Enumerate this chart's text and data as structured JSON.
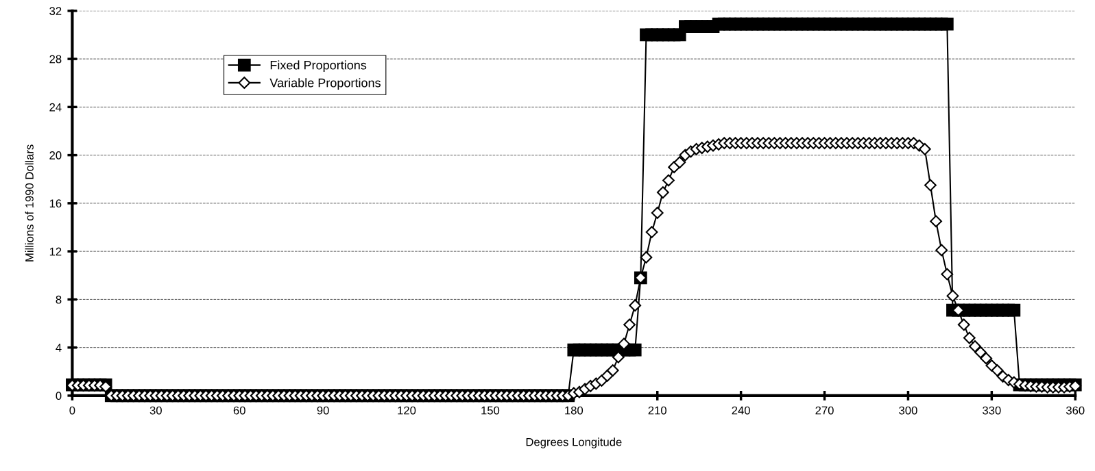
{
  "chart_data": {
    "type": "line",
    "xlabel": "Degrees Longitude",
    "ylabel": "Millions of 1990 Dollars",
    "x": [
      0,
      2,
      4,
      6,
      8,
      10,
      12,
      14,
      16,
      18,
      20,
      22,
      24,
      26,
      28,
      30,
      32,
      34,
      36,
      38,
      40,
      42,
      44,
      46,
      48,
      50,
      52,
      54,
      56,
      58,
      60,
      62,
      64,
      66,
      68,
      70,
      72,
      74,
      76,
      78,
      80,
      82,
      84,
      86,
      88,
      90,
      92,
      94,
      96,
      98,
      100,
      102,
      104,
      106,
      108,
      110,
      112,
      114,
      116,
      118,
      120,
      122,
      124,
      126,
      128,
      130,
      132,
      134,
      136,
      138,
      140,
      142,
      144,
      146,
      148,
      150,
      152,
      154,
      156,
      158,
      160,
      162,
      164,
      166,
      168,
      170,
      172,
      174,
      176,
      178,
      180,
      182,
      184,
      186,
      188,
      190,
      192,
      194,
      196,
      198,
      200,
      202,
      204,
      206,
      208,
      210,
      212,
      214,
      216,
      218,
      220,
      222,
      224,
      226,
      228,
      230,
      232,
      234,
      236,
      238,
      240,
      242,
      244,
      246,
      248,
      250,
      252,
      254,
      256,
      258,
      260,
      262,
      264,
      266,
      268,
      270,
      272,
      274,
      276,
      278,
      280,
      282,
      284,
      286,
      288,
      290,
      292,
      294,
      296,
      298,
      300,
      302,
      304,
      306,
      308,
      310,
      312,
      314,
      316,
      318,
      320,
      322,
      324,
      326,
      328,
      330,
      332,
      334,
      336,
      338,
      340,
      342,
      344,
      346,
      348,
      350,
      352,
      354,
      356,
      358,
      360
    ],
    "series": [
      {
        "name": "Fixed Proportions",
        "color": "#000000",
        "marker": "square",
        "values": [
          0.9,
          0.9,
          0.9,
          0.9,
          0.9,
          0.9,
          0.9,
          0,
          0,
          0,
          0,
          0,
          0,
          0,
          0,
          0,
          0,
          0,
          0,
          0,
          0,
          0,
          0,
          0,
          0,
          0,
          0,
          0,
          0,
          0,
          0,
          0,
          0,
          0,
          0,
          0,
          0,
          0,
          0,
          0,
          0,
          0,
          0,
          0,
          0,
          0,
          0,
          0,
          0,
          0,
          0,
          0,
          0,
          0,
          0,
          0,
          0,
          0,
          0,
          0,
          0,
          0,
          0,
          0,
          0,
          0,
          0,
          0,
          0,
          0,
          0,
          0,
          0,
          0,
          0,
          0,
          0,
          0,
          0,
          0,
          0,
          0,
          0,
          0,
          0,
          0,
          0,
          0,
          0,
          0,
          3.8,
          3.8,
          3.8,
          3.8,
          3.8,
          3.8,
          3.8,
          3.8,
          3.8,
          3.8,
          3.8,
          3.8,
          9.8,
          30,
          30,
          30,
          30,
          30,
          30,
          30,
          30.7,
          30.7,
          30.7,
          30.7,
          30.7,
          30.7,
          30.9,
          30.9,
          30.9,
          30.9,
          30.9,
          30.9,
          30.9,
          30.9,
          30.9,
          30.9,
          30.9,
          30.9,
          30.9,
          30.9,
          30.9,
          30.9,
          30.9,
          30.9,
          30.9,
          30.9,
          30.9,
          30.9,
          30.9,
          30.9,
          30.9,
          30.9,
          30.9,
          30.9,
          30.9,
          30.9,
          30.9,
          30.9,
          30.9,
          30.9,
          30.9,
          30.9,
          30.9,
          30.9,
          30.9,
          30.9,
          30.9,
          30.9,
          7.1,
          7.1,
          7.1,
          7.1,
          7.1,
          7.1,
          7.1,
          7.1,
          7.1,
          7.1,
          7.1,
          7.1,
          0.9,
          0.9,
          0.9,
          0.9,
          0.9,
          0.9,
          0.9,
          0.9,
          0.9,
          0.9,
          0.9
        ]
      },
      {
        "name": "Variable Proportions",
        "color": "#000000",
        "marker": "diamond",
        "values": [
          0.85,
          0.85,
          0.85,
          0.85,
          0.85,
          0.85,
          0.75,
          0,
          0,
          0,
          0,
          0,
          0,
          0,
          0,
          0,
          0,
          0,
          0,
          0,
          0,
          0,
          0,
          0,
          0,
          0,
          0,
          0,
          0,
          0,
          0,
          0,
          0,
          0,
          0,
          0,
          0,
          0,
          0,
          0,
          0,
          0,
          0,
          0,
          0,
          0,
          0,
          0,
          0,
          0,
          0,
          0,
          0,
          0,
          0,
          0,
          0,
          0,
          0,
          0,
          0,
          0,
          0,
          0,
          0,
          0,
          0,
          0,
          0,
          0,
          0,
          0,
          0,
          0,
          0,
          0,
          0,
          0,
          0,
          0,
          0,
          0,
          0,
          0,
          0,
          0,
          0,
          0,
          0,
          0,
          0.2,
          0.3,
          0.55,
          0.8,
          1.0,
          1.25,
          1.65,
          2.1,
          3.2,
          4.3,
          5.9,
          7.5,
          9.8,
          11.5,
          13.6,
          15.2,
          16.9,
          17.9,
          19.0,
          19.4,
          20.0,
          20.3,
          20.5,
          20.6,
          20.7,
          20.8,
          20.9,
          21.0,
          21.0,
          21.0,
          21.0,
          21.0,
          21.0,
          21.0,
          21.0,
          21.0,
          21.0,
          21.0,
          21.0,
          21.0,
          21.0,
          21.0,
          21.0,
          21.0,
          21.0,
          21.0,
          21.0,
          21.0,
          21.0,
          21.0,
          21.0,
          21.0,
          21.0,
          21.0,
          21.0,
          21.0,
          21.0,
          21.0,
          21.0,
          21.0,
          21.0,
          21.0,
          20.8,
          20.5,
          17.5,
          14.5,
          12.1,
          10.1,
          8.3,
          7.1,
          5.9,
          4.8,
          4.1,
          3.6,
          3.1,
          2.5,
          2.1,
          1.6,
          1.3,
          1.1,
          0.95,
          0.85,
          0.8,
          0.75,
          0.75,
          0.7,
          0.7,
          0.7,
          0.7,
          0.75,
          0.8
        ]
      }
    ],
    "xlim": [
      0,
      360
    ],
    "xticks": [
      0,
      30,
      60,
      90,
      120,
      150,
      180,
      210,
      240,
      270,
      300,
      330,
      360
    ],
    "ylim": [
      0,
      32
    ],
    "yticks": [
      0,
      4,
      8,
      12,
      16,
      20,
      24,
      28,
      32
    ],
    "grid": "y",
    "legend": "top left",
    "line_style": "solid"
  }
}
